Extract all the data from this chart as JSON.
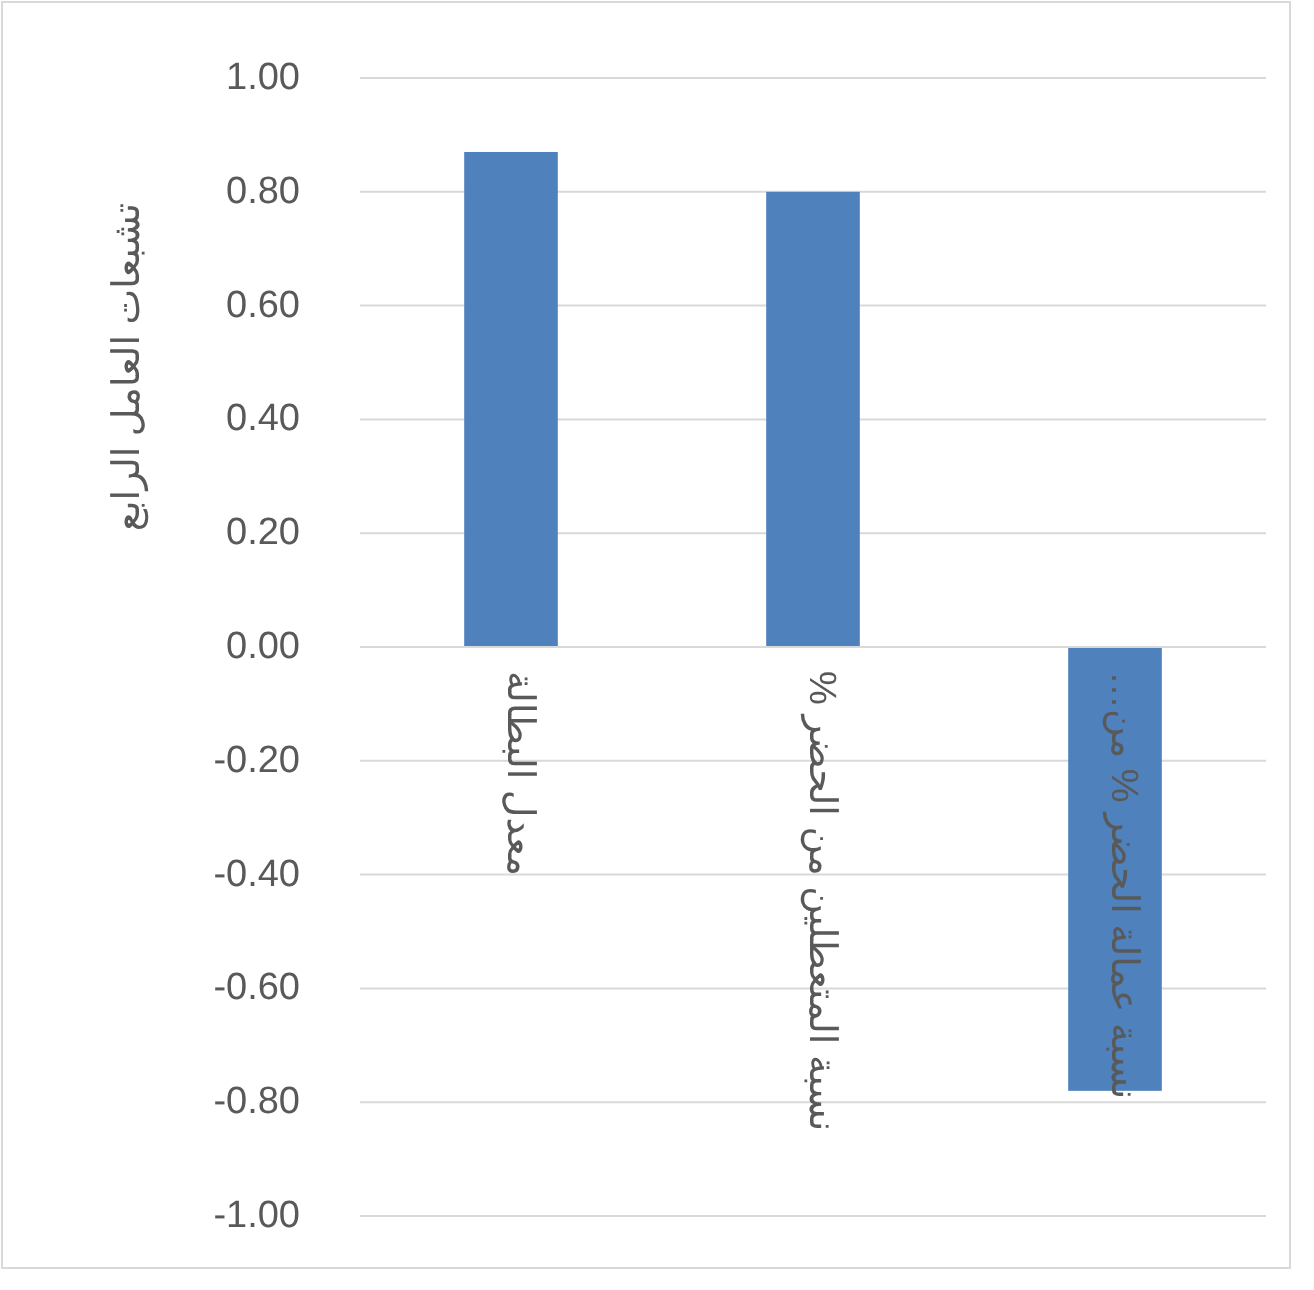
{
  "chart_data": {
    "type": "bar",
    "ylabel": "تشبعات العامل الرابع",
    "categories": [
      "معدل البطالة",
      "نسبة المتعطلين من الحضر %",
      "نسبة عمالة الحضر % من…"
    ],
    "values": [
      0.87,
      0.8,
      -0.78
    ],
    "color": "#4f81bd",
    "ylim": [
      -1.0,
      1.0
    ],
    "yticks": [
      {
        "value": -1.0,
        "label": "-1.00"
      },
      {
        "value": -0.8,
        "label": "-0.80"
      },
      {
        "value": -0.6,
        "label": "-0.60"
      },
      {
        "value": -0.4,
        "label": "-0.40"
      },
      {
        "value": -0.2,
        "label": "-0.20"
      },
      {
        "value": 0.0,
        "label": "0.00"
      },
      {
        "value": 0.2,
        "label": "0.20"
      },
      {
        "value": 0.4,
        "label": "0.40"
      },
      {
        "value": 0.6,
        "label": "0.60"
      },
      {
        "value": 0.8,
        "label": "0.80"
      },
      {
        "value": 1.0,
        "label": "1.00"
      }
    ],
    "grid": "y"
  }
}
